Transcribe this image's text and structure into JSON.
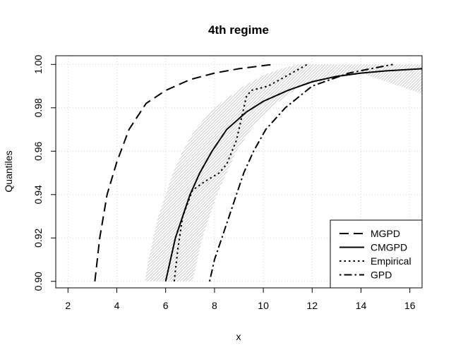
{
  "chart_data": {
    "type": "line",
    "title": "4th regime",
    "xlabel": "x",
    "ylabel": "Quantiles",
    "xlim": [
      1.5,
      16.5
    ],
    "ylim": [
      0.897,
      1.004
    ],
    "x_ticks": [
      2,
      4,
      6,
      8,
      10,
      12,
      14,
      16
    ],
    "y_ticks": [
      0.9,
      0.92,
      0.94,
      0.96,
      0.98,
      1.0
    ],
    "x_tick_labels": [
      "2",
      "4",
      "6",
      "8",
      "10",
      "12",
      "14",
      "16"
    ],
    "y_tick_labels": [
      "0.90",
      "0.92",
      "0.94",
      "0.96",
      "0.98",
      "1.00"
    ],
    "grid": true,
    "legend_position": "bottom-right",
    "band": {
      "fill": "#cccccc",
      "hatched": true,
      "lower": [
        [
          7.1,
          0.9
        ],
        [
          7.3,
          0.91
        ],
        [
          7.5,
          0.92
        ],
        [
          7.8,
          0.93
        ],
        [
          8.1,
          0.94
        ],
        [
          8.5,
          0.95
        ],
        [
          8.9,
          0.96
        ],
        [
          9.5,
          0.97
        ],
        [
          10.3,
          0.98
        ],
        [
          11.5,
          0.99
        ],
        [
          14.0,
          0.996
        ],
        [
          16.5,
          0.9865
        ]
      ],
      "upper": [
        [
          5.15,
          0.9
        ],
        [
          5.3,
          0.91
        ],
        [
          5.5,
          0.92
        ],
        [
          5.7,
          0.93
        ],
        [
          6.0,
          0.94
        ],
        [
          6.3,
          0.95
        ],
        [
          6.7,
          0.96
        ],
        [
          7.2,
          0.97
        ],
        [
          8.0,
          0.98
        ],
        [
          9.2,
          0.99
        ],
        [
          10.0,
          0.995
        ],
        [
          10.6,
          0.9975
        ],
        [
          11.4,
          1.0
        ],
        [
          16.5,
          1.0
        ]
      ]
    },
    "series": [
      {
        "name": "MGPD",
        "dash": "dashed",
        "points": [
          [
            3.1,
            0.9
          ],
          [
            3.3,
            0.92
          ],
          [
            3.6,
            0.94
          ],
          [
            4.0,
            0.955
          ],
          [
            4.5,
            0.97
          ],
          [
            5.2,
            0.982
          ],
          [
            6.0,
            0.988
          ],
          [
            7.0,
            0.993
          ],
          [
            8.0,
            0.996
          ],
          [
            9.0,
            0.998
          ],
          [
            10.4,
            1.0
          ]
        ]
      },
      {
        "name": "CMGPD",
        "dash": "solid",
        "points": [
          [
            6.0,
            0.9
          ],
          [
            6.2,
            0.91
          ],
          [
            6.4,
            0.92
          ],
          [
            6.7,
            0.93
          ],
          [
            7.0,
            0.94
          ],
          [
            7.4,
            0.95
          ],
          [
            7.9,
            0.96
          ],
          [
            8.5,
            0.97
          ],
          [
            9.3,
            0.978
          ],
          [
            10.0,
            0.983
          ],
          [
            11.0,
            0.988
          ],
          [
            12.0,
            0.992
          ],
          [
            13.0,
            0.9945
          ],
          [
            14.0,
            0.996
          ],
          [
            15.0,
            0.997
          ],
          [
            16.5,
            0.998
          ]
        ]
      },
      {
        "name": "Empirical",
        "dash": "dotted",
        "points": [
          [
            6.35,
            0.9
          ],
          [
            6.5,
            0.915
          ],
          [
            6.7,
            0.93
          ],
          [
            7.1,
            0.942
          ],
          [
            7.6,
            0.946
          ],
          [
            8.2,
            0.95
          ],
          [
            8.5,
            0.954
          ],
          [
            8.9,
            0.965
          ],
          [
            9.1,
            0.975
          ],
          [
            9.3,
            0.985
          ],
          [
            9.5,
            0.988
          ],
          [
            10.2,
            0.99
          ],
          [
            11.0,
            0.995
          ],
          [
            11.8,
            1.0
          ]
        ]
      },
      {
        "name": "GPD",
        "dash": "dotdash",
        "points": [
          [
            7.8,
            0.9
          ],
          [
            8.0,
            0.91
          ],
          [
            8.3,
            0.92
          ],
          [
            8.6,
            0.93
          ],
          [
            8.9,
            0.94
          ],
          [
            9.2,
            0.95
          ],
          [
            9.6,
            0.96
          ],
          [
            10.1,
            0.97
          ],
          [
            10.9,
            0.98
          ],
          [
            12.0,
            0.99
          ],
          [
            13.5,
            0.996
          ],
          [
            15.3,
            1.0
          ]
        ]
      }
    ]
  }
}
